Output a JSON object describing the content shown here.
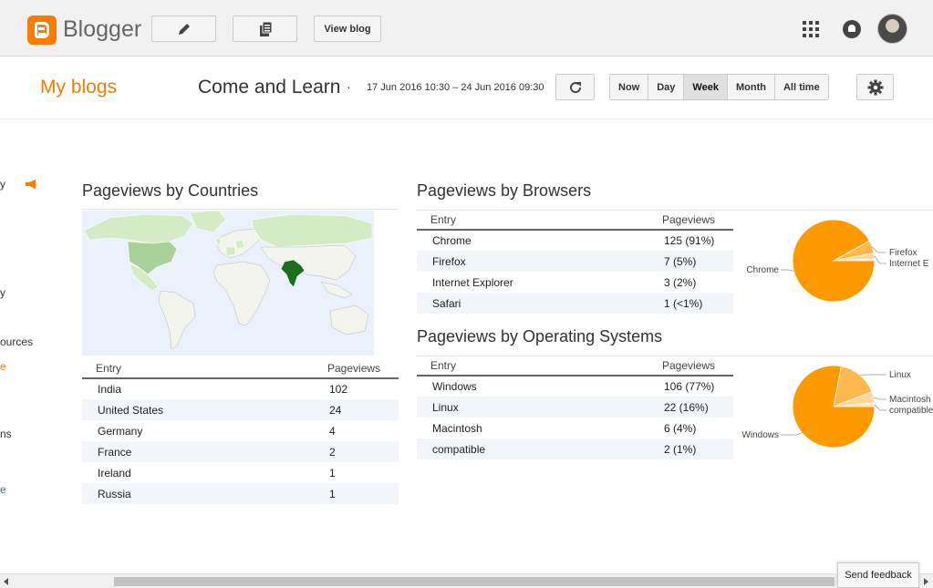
{
  "app": {
    "name": "Blogger"
  },
  "toolbar": {
    "view_blog_label": "View blog"
  },
  "header": {
    "my_blogs": "My blogs",
    "blog_title": "Come and Learn",
    "separator": "·",
    "date_range": "17 Jun 2016 10:30 – 24 Jun 2016 09:30",
    "ranges": [
      "Now",
      "Day",
      "Week",
      "Month",
      "All time"
    ],
    "active_range": "Week"
  },
  "sidebar_fragments": [
    "y",
    "y",
    "ources",
    "e",
    "ns",
    "e"
  ],
  "countries": {
    "title": "Pageviews by Countries",
    "col_entry": "Entry",
    "col_pageviews": "Pageviews",
    "rows": [
      {
        "entry": "India",
        "value": "102"
      },
      {
        "entry": "United States",
        "value": "24"
      },
      {
        "entry": "Germany",
        "value": "4"
      },
      {
        "entry": "France",
        "value": "2"
      },
      {
        "entry": "Ireland",
        "value": "1"
      },
      {
        "entry": "Russia",
        "value": "1"
      }
    ]
  },
  "browsers": {
    "title": "Pageviews by Browsers",
    "col_entry": "Entry",
    "col_pageviews": "Pageviews",
    "rows": [
      {
        "entry": "Chrome",
        "value": "125 (91%)"
      },
      {
        "entry": "Firefox",
        "value": "7 (5%)"
      },
      {
        "entry": "Internet Explorer",
        "value": "3 (2%)"
      },
      {
        "entry": "Safari",
        "value": "1 (<1%)"
      }
    ],
    "pie": {
      "slices": [
        {
          "label": "Chrome",
          "value": 125,
          "color": "#ff9900"
        },
        {
          "label": "Firefox",
          "value": 7,
          "color": "#ffb84d"
        },
        {
          "label": "Internet E",
          "value": 3,
          "color": "#ffd699"
        },
        {
          "label": "",
          "value": 1,
          "color": "#ffe6c2"
        }
      ]
    }
  },
  "os": {
    "title": "Pageviews by Operating Systems",
    "col_entry": "Entry",
    "col_pageviews": "Pageviews",
    "rows": [
      {
        "entry": "Windows",
        "value": "106 (77%)"
      },
      {
        "entry": "Linux",
        "value": "22 (16%)"
      },
      {
        "entry": "Macintosh",
        "value": "6 (4%)"
      },
      {
        "entry": "compatible",
        "value": "2 (1%)"
      }
    ],
    "pie": {
      "slices": [
        {
          "label": "Windows",
          "value": 106,
          "color": "#ff9900"
        },
        {
          "label": "Linux",
          "value": 22,
          "color": "#ffb84d"
        },
        {
          "label": "Macintosh",
          "value": 6,
          "color": "#ffd699"
        },
        {
          "label": "compatible",
          "value": 2,
          "color": "#ffe6c2"
        }
      ]
    }
  },
  "feedback": {
    "label": "Send feedback"
  },
  "colors": {
    "brand": "#f57d00",
    "pie_main": "#ff9900",
    "map_highlight": "#1b6e1b",
    "map_medium": "#a8d29a",
    "map_light": "#d4ebc5"
  }
}
